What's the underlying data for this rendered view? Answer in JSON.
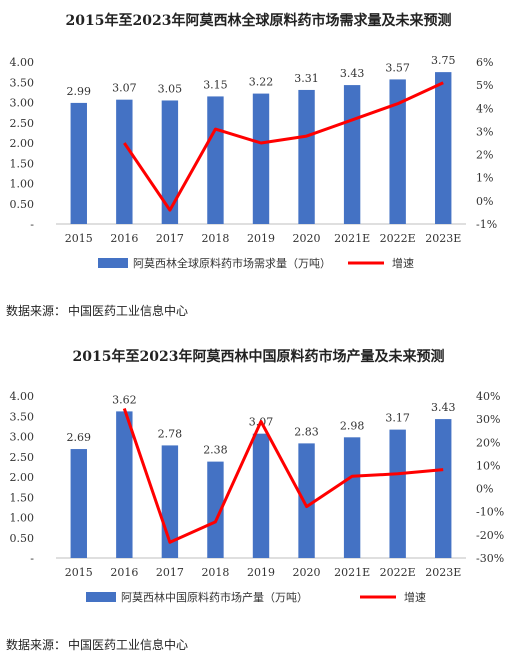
{
  "chart_data": [
    {
      "type": "bar",
      "title": "2015年至2023年阿莫西林全球原料药市场需求量及未来预测",
      "categories": [
        "2015",
        "2016",
        "2017",
        "2018",
        "2019",
        "2020",
        "2021E",
        "2022E",
        "2023E"
      ],
      "series": [
        {
          "name": "阿莫西林全球原料药市场需求量（万吨）",
          "type": "bar",
          "axis": "left",
          "values": [
            2.99,
            3.07,
            3.05,
            3.15,
            3.22,
            3.31,
            3.43,
            3.57,
            3.75
          ],
          "data_labels": [
            "2.99",
            "3.07",
            "3.05",
            "3.15",
            "3.22",
            "3.31",
            "3.43",
            "3.57",
            "3.75"
          ]
        },
        {
          "name": "增速",
          "type": "line",
          "axis": "right",
          "values": [
            null,
            2.5,
            -0.4,
            3.1,
            2.5,
            2.8,
            3.5,
            4.2,
            5.1
          ]
        }
      ],
      "left_axis": {
        "ylim": [
          0,
          4.0
        ],
        "ticks": [
          "-",
          "0.50",
          "1.00",
          "1.50",
          "2.00",
          "2.50",
          "3.00",
          "3.50",
          "4.00"
        ]
      },
      "right_axis": {
        "ylim": [
          -1,
          6
        ],
        "ticks": [
          "-1%",
          "0%",
          "1%",
          "2%",
          "3%",
          "4%",
          "5%",
          "6%"
        ]
      },
      "legend": "bottom",
      "grid": false,
      "colors": {
        "bar": "#4472C4",
        "line": "#FF0000"
      }
    },
    {
      "type": "bar",
      "title": "2015年至2023年阿莫西林中国原料药市场产量及未来预测",
      "categories": [
        "2015",
        "2016",
        "2017",
        "2018",
        "2019",
        "2020",
        "2021E",
        "2022E",
        "2023E"
      ],
      "series": [
        {
          "name": "阿莫西林中国原料药市场产量（万吨）",
          "type": "bar",
          "axis": "left",
          "values": [
            2.69,
            3.62,
            2.78,
            2.38,
            3.07,
            2.83,
            2.98,
            3.17,
            3.43
          ],
          "data_labels": [
            "2.69",
            "3.62",
            "2.78",
            "2.38",
            "3.07",
            "2.83",
            "2.98",
            "3.17",
            "3.43"
          ]
        },
        {
          "name": "增速",
          "type": "line",
          "axis": "right",
          "values": [
            null,
            34.6,
            -23.2,
            -14.4,
            29.0,
            -7.8,
            5.3,
            6.4,
            8.2
          ]
        }
      ],
      "left_axis": {
        "ylim": [
          0,
          4.0
        ],
        "ticks": [
          "-",
          "0.50",
          "1.00",
          "1.50",
          "2.00",
          "2.50",
          "3.00",
          "3.50",
          "4.00"
        ]
      },
      "right_axis": {
        "ylim": [
          -30,
          40
        ],
        "ticks": [
          "-30%",
          "-20%",
          "-10%",
          "0%",
          "10%",
          "20%",
          "30%",
          "40%"
        ]
      },
      "legend": "bottom",
      "grid": false,
      "colors": {
        "bar": "#4472C4",
        "line": "#FF0000"
      }
    }
  ],
  "sources": [
    {
      "label": "数据来源：",
      "text": "中国医药工业信息中心"
    },
    {
      "label": "数据来源：",
      "text": "中国医药工业信息中心"
    }
  ]
}
